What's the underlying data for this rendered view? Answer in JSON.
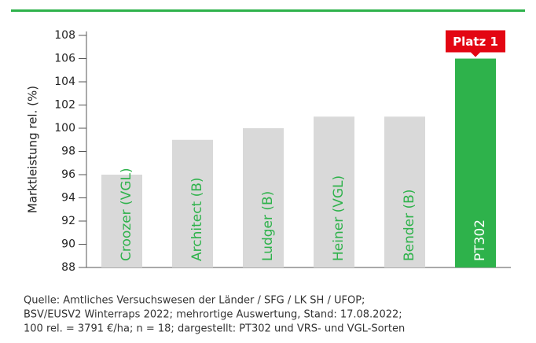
{
  "chart_data": {
    "type": "bar",
    "ylabel": "Marktleistung rel. (%)",
    "categories": [
      "Croozer (VGL)",
      "Architect (B)",
      "Ludger (B)",
      "Heiner (VGL)",
      "Bender (B)",
      "PT302"
    ],
    "values": [
      96,
      99,
      100,
      101,
      101,
      106
    ],
    "colors": [
      "#d9d9d9",
      "#d9d9d9",
      "#d9d9d9",
      "#d9d9d9",
      "#d9d9d9",
      "#2eb24b"
    ],
    "label_colors": [
      "#2eb24b",
      "#2eb24b",
      "#2eb24b",
      "#2eb24b",
      "#2eb24b",
      "#ffffff"
    ],
    "ylim": [
      88,
      108
    ],
    "yticks": [
      88,
      90,
      92,
      94,
      96,
      98,
      100,
      102,
      104,
      106,
      108
    ],
    "annotation": {
      "text": "Platz 1",
      "category": "PT302",
      "color": "#e30613"
    },
    "source": [
      "Quelle: Amtliches Versuchswesen der Länder / SFG / LK SH / UFOP;",
      "BSV/EUSV2 Winterraps 2022; mehrortige Auswertung, Stand: 17.08.2022;",
      "100 rel. = 3791 €/ha; n = 18; dargestellt: PT302 und VRS- und VGL-Sorten"
    ]
  }
}
